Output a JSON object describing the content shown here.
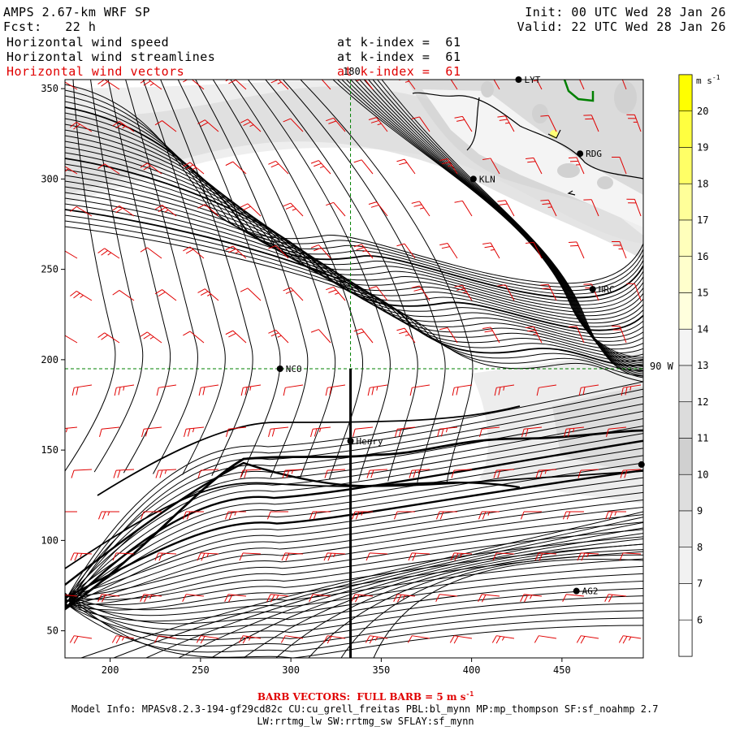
{
  "header": {
    "model": "AMPS 2.67-km WRF SP",
    "init": "Init: 00 UTC Wed 28 Jan 26",
    "fcst": "Fcst:   22 h",
    "valid": "Valid: 22 UTC Wed 28 Jan 26",
    "fields": [
      {
        "name": "Horizontal wind speed",
        "level": "at k-index =  61",
        "color": "#000000"
      },
      {
        "name": "Horizontal wind streamlines",
        "level": "at k-index =  61",
        "color": "#000000"
      },
      {
        "name": "Horizontal wind vectors",
        "level": "at k-index =  61",
        "color": "#e00000"
      }
    ]
  },
  "map": {
    "x_ticks": [
      "200",
      "250",
      "300",
      "350",
      "400",
      "450"
    ],
    "y_ticks": [
      "50",
      "100",
      "150",
      "200",
      "250",
      "300",
      "350"
    ],
    "x_range": [
      175,
      495
    ],
    "y_range": [
      35,
      355
    ],
    "meridian_label": "180",
    "parallel_label": "90 W",
    "crosshair": {
      "x": 333,
      "y": 195
    },
    "cross_section_x": 333,
    "cross_section_y_range": [
      35,
      195
    ],
    "stations": [
      {
        "code": "LYT",
        "x": 426,
        "y": 355
      },
      {
        "code": "RDG",
        "x": 460,
        "y": 314
      },
      {
        "code": "KLN",
        "x": 401,
        "y": 300
      },
      {
        "code": "HRC",
        "x": 467,
        "y": 239
      },
      {
        "code": "NCO",
        "x": 294,
        "y": 195
      },
      {
        "code": "Henry",
        "x": 333,
        "y": 155
      },
      {
        "code": "AG2",
        "x": 458,
        "y": 72
      },
      {
        "code": "",
        "x": 494,
        "y": 142
      }
    ]
  },
  "colorbar": {
    "unit": "m s",
    "unit_exp": "-1",
    "labels": [
      "20",
      "19",
      "18",
      "17",
      "16",
      "15",
      "14",
      "13",
      "12",
      "11",
      "10",
      "9",
      "8",
      "7",
      "6"
    ],
    "colors": [
      "#ffff00",
      "#ffff40",
      "#ffff66",
      "#ffff99",
      "#ffffbb",
      "#ffffcc",
      "#ffffdd",
      "#f4f4f4",
      "#e8e8e8",
      "#dcdcdc",
      "#d0d0d0",
      "#dedede",
      "#e8e8e8",
      "#f2f2f2",
      "#ffffff",
      "#ffffff"
    ]
  },
  "footer": {
    "barb_note": "BARB VECTORS:  FULL BARB = 5 m s",
    "barb_exp": "-1",
    "model_info": "Model Info: MPASv8.2.3-194-gf29cd82c CU:cu_grell_freitas PBL:bl_mynn MP:mp_thompson SF:sf_noahmp 2.7",
    "schemes": "LW:rrtmg_lw SW:rrtmg_sw SFLAY:sf_mynn"
  },
  "colors": {
    "barb": "#e00000",
    "gridline": "#008000",
    "coast": "#008000"
  }
}
